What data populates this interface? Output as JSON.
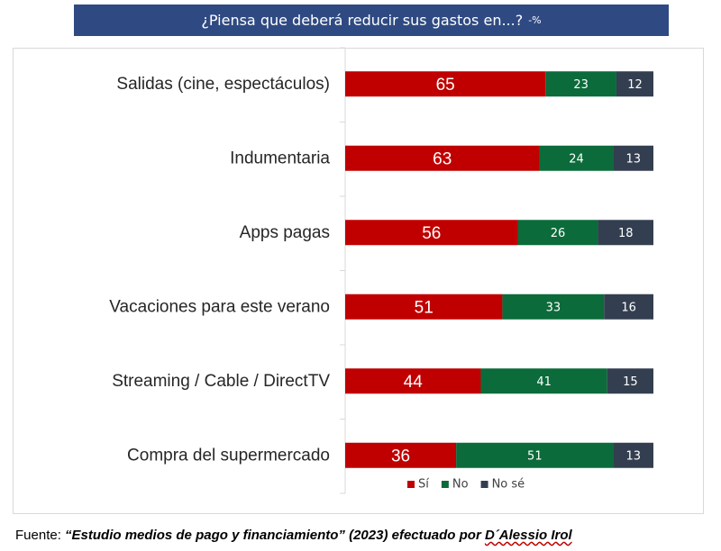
{
  "header": {
    "title": "¿Piensa que deberá reducir sus gastos en...?",
    "unit": "-%"
  },
  "footer": {
    "prefix": "Fuente: ",
    "citation": "“Estudio medios de pago y financiamiento” (2023) efectuado por ",
    "author": "D´Alessio Irol"
  },
  "colors": {
    "si": "#c00000",
    "no": "#0b6b3a",
    "nose": "#333f50"
  },
  "chart_data": {
    "type": "bar",
    "orientation": "horizontal",
    "stacked": true,
    "categories": [
      "Salidas (cine, espectáculos)",
      "Indumentaria",
      "Apps pagas",
      "Vacaciones para este verano",
      "Streaming / Cable / DirectTV",
      "Compra del supermercado"
    ],
    "series": [
      {
        "name": "Sí",
        "values": [
          65,
          63,
          56,
          51,
          44,
          36
        ]
      },
      {
        "name": "No",
        "values": [
          23,
          24,
          26,
          33,
          41,
          51
        ]
      },
      {
        "name": "No sé",
        "values": [
          12,
          13,
          18,
          16,
          15,
          13
        ]
      }
    ],
    "title": "¿Piensa que deberá reducir sus gastos en...?",
    "xlim": [
      0,
      100
    ],
    "grid": false,
    "legend": "bottom"
  }
}
